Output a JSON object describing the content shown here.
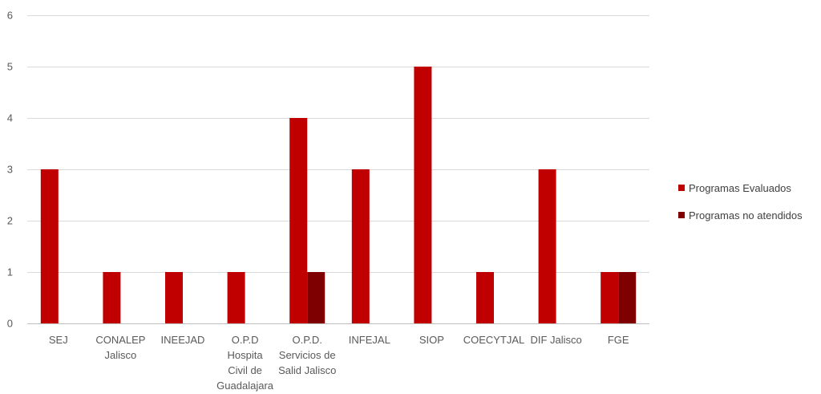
{
  "chart_data": {
    "type": "bar",
    "categories": [
      [
        "SEJ"
      ],
      [
        "CONALEP",
        "Jalisco"
      ],
      [
        "INEEJAD"
      ],
      [
        "O.P.D",
        "Hospita",
        "Civil de",
        "Guadalajara"
      ],
      [
        "O.P.D.",
        "Servicios de",
        "Salid Jalisco"
      ],
      [
        "INFEJAL"
      ],
      [
        "SIOP"
      ],
      [
        "COECYTJAL"
      ],
      [
        "DIF Jalisco"
      ],
      [
        "FGE"
      ]
    ],
    "series": [
      {
        "name": "Programas Evaluados",
        "color": "#C00000",
        "values": [
          3,
          1,
          1,
          1,
          4,
          3,
          5,
          1,
          3,
          1
        ]
      },
      {
        "name": "Programas no atendidos",
        "color": "#7F0000",
        "values": [
          0,
          0,
          0,
          0,
          1,
          0,
          0,
          0,
          0,
          1
        ]
      }
    ],
    "ylim": [
      0,
      6
    ],
    "yticks": [
      0,
      1,
      2,
      3,
      4,
      5,
      6
    ],
    "grid": true,
    "legend": "right"
  }
}
